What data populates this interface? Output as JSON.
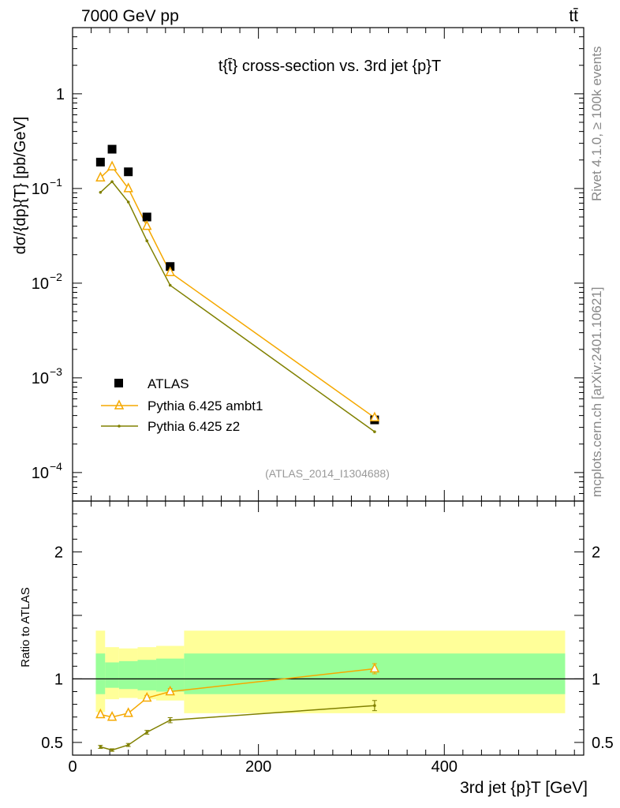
{
  "header": {
    "energy_label": "7000 GeV pp",
    "process_label": "tt̄"
  },
  "side_labels": {
    "rivet": "Rivet 4.1.0, ≥ 100k events",
    "mcplots": "mcplots.cern.ch [arXiv:2401.10621]"
  },
  "chart_data": {
    "type": "scatter",
    "title": "t{t̄} cross-section vs. 3rd jet {p}T",
    "analysis_tag": "(ATLAS_2014_I1304688)",
    "ylabel": "dσ/{dp}{T} [pb/GeV]",
    "xlabel": "3rd jet {p}T [GeV]",
    "xlim": [
      0,
      550
    ],
    "ylim": [
      5e-05,
      5
    ],
    "yscale": "log",
    "x": [
      30,
      42.5,
      60,
      80,
      105,
      325
    ],
    "series": [
      {
        "name": "ATLAS",
        "values": [
          0.19,
          0.26,
          0.15,
          0.05,
          0.015,
          0.00036
        ],
        "color": "#000000",
        "marker": "square"
      },
      {
        "name": "Pythia 6.425 ambt1",
        "values": [
          0.13,
          0.17,
          0.1,
          0.04,
          0.013,
          0.00038
        ],
        "color": "#f5a800",
        "marker": "triangle"
      },
      {
        "name": "Pythia 6.425 z2",
        "values": [
          0.091,
          0.118,
          0.072,
          0.028,
          0.0095,
          0.00027
        ],
        "color": "#808000",
        "marker": "dot"
      }
    ],
    "ratio": {
      "ylabel": "Ratio to ATLAS",
      "ylim": [
        0.4,
        2.4
      ],
      "yticks": [
        "0.5",
        "1",
        "2"
      ],
      "xticks": [
        "0",
        "200",
        "400"
      ],
      "bins": [
        [
          25,
          35
        ],
        [
          35,
          50
        ],
        [
          50,
          70
        ],
        [
          70,
          90
        ],
        [
          90,
          120
        ],
        [
          120,
          530
        ]
      ],
      "band_stat_sys": [
        [
          0.74,
          1.38
        ],
        [
          0.84,
          1.25
        ],
        [
          0.85,
          1.24
        ],
        [
          0.84,
          1.25
        ],
        [
          0.83,
          1.26
        ],
        [
          0.73,
          1.38
        ]
      ],
      "band_stat": [
        [
          0.88,
          1.2
        ],
        [
          0.93,
          1.13
        ],
        [
          0.92,
          1.14
        ],
        [
          0.91,
          1.15
        ],
        [
          0.9,
          1.16
        ],
        [
          0.88,
          1.2
        ]
      ],
      "series": [
        {
          "name": "Pythia 6.425 ambt1",
          "values": [
            0.72,
            0.7,
            0.73,
            0.85,
            0.9,
            1.08
          ],
          "errors": [
            0.015,
            0.015,
            0.015,
            0.02,
            0.025,
            0.04
          ]
        },
        {
          "name": "Pythia 6.425 z2",
          "values": [
            0.465,
            0.44,
            0.48,
            0.58,
            0.675,
            0.79
          ],
          "errors": [
            0.012,
            0.01,
            0.012,
            0.015,
            0.02,
            0.04
          ]
        }
      ]
    },
    "yticks_main": [
      {
        "mantissa": "10",
        "exp": "−4",
        "value": 0.0001
      },
      {
        "mantissa": "10",
        "exp": "−3",
        "value": 0.001
      },
      {
        "mantissa": "10",
        "exp": "−2",
        "value": 0.01
      },
      {
        "mantissa": "10",
        "exp": "−1",
        "value": 0.1
      },
      {
        "mantissa": "1",
        "exp": "",
        "value": 1
      }
    ]
  }
}
